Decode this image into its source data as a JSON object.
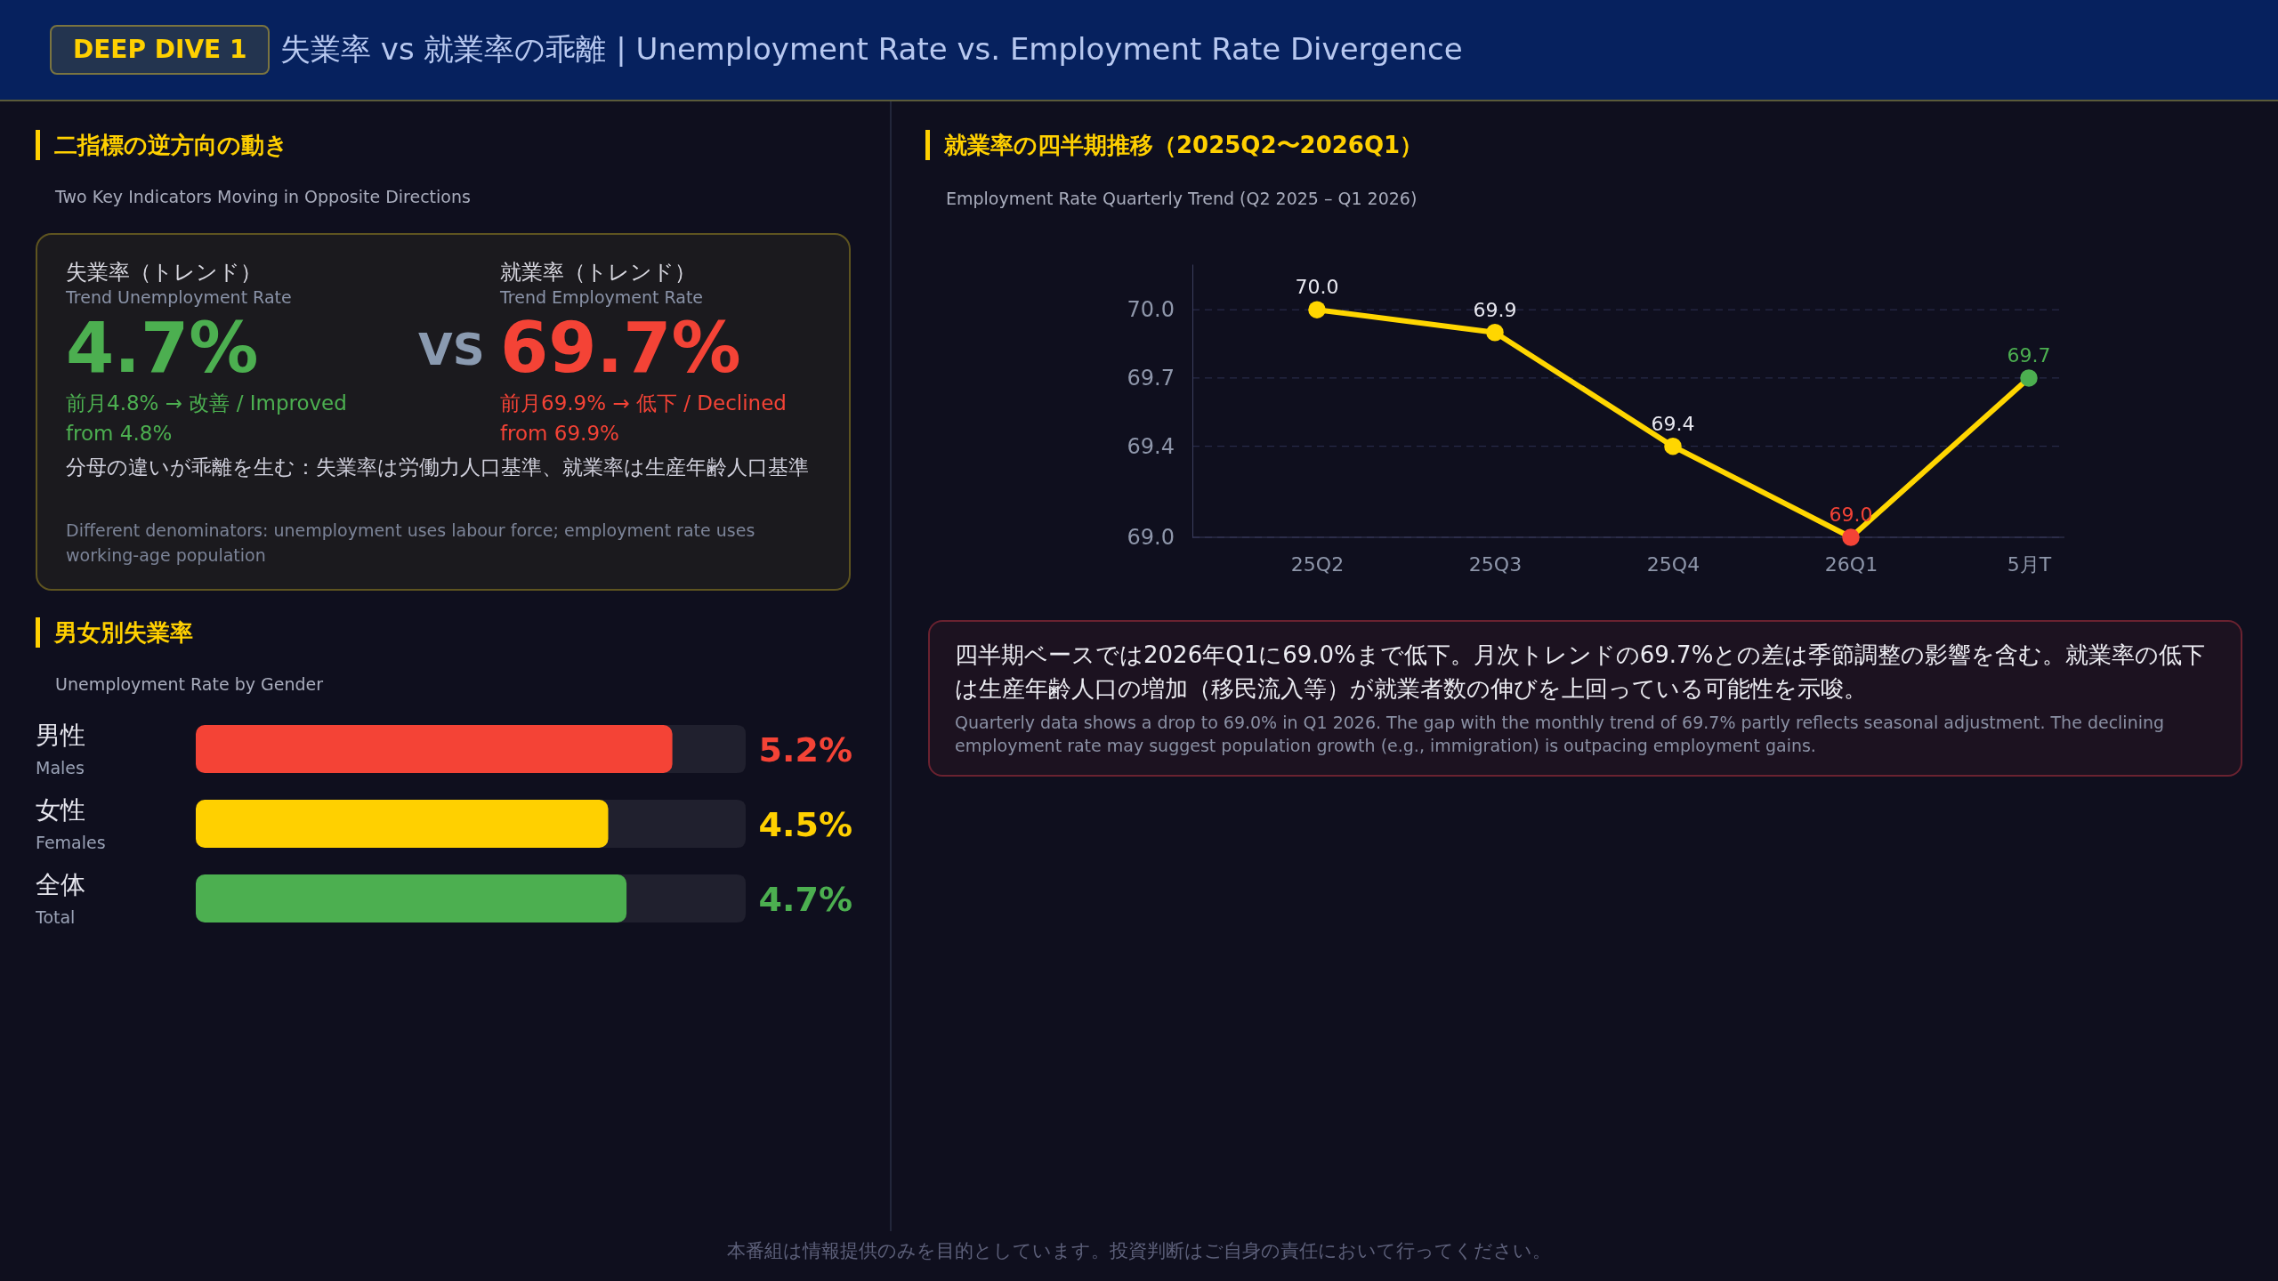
{
  "chart_data": [
    {
      "type": "other",
      "title": "失業率 vs 就業率の乖離 | Unemployment Rate vs. Employment Rate Divergence",
      "annotations": [
        "DEEP DIVE 1",
        "本番組は情報提供のみを目的としています。投資判断はご自身の責任において行ってください。"
      ]
    },
    {
      "type": "other",
      "title": "二指標の逆方向の動き",
      "subtitle": "Two Key Indicators Moving in Opposite Directions",
      "annotations": [
        "失業率（トレンド）",
        "Trend Unemployment Rate",
        "4.7%",
        "前月4.8% → 改善 / Improved from 4.8%",
        "VS",
        "就業率（トレンド）",
        "Trend Employment Rate",
        "69.7%",
        "前月69.9% → 低下 / Declined from 69.9%",
        "分母の違いが乖離を生む：失業率は労働力人口基準、就業率は生産年齢人口基準",
        "Different denominators: unemployment uses labour force; employment rate uses working-age population"
      ]
    },
    {
      "type": "bar",
      "orientation": "horizontal",
      "title": "男女別失業率",
      "subtitle": "Unemployment Rate by Gender",
      "categories": [
        "男性\nMales",
        "女性\nFemales",
        "全体\nTotal"
      ],
      "values": [
        5.2,
        4.5,
        4.7
      ],
      "colors": [
        "#f44336",
        "#ffd000",
        "#4caf50"
      ],
      "value_labels": [
        "5.2%",
        "4.5%",
        "4.7%"
      ],
      "xlim": [
        0,
        6
      ],
      "tick_labels": "y"
    },
    {
      "type": "line",
      "title": "就業率の四半期推移（2025Q2〜2026Q1）",
      "subtitle": "Employment Rate Quarterly Trend (Q2 2025 – Q1 2026)",
      "categories": [
        "25Q2",
        "25Q3",
        "25Q4",
        "26Q1",
        "5月T"
      ],
      "values": [
        70.0,
        69.9,
        69.4,
        69.0,
        69.7
      ],
      "color": "#ffd600",
      "colors": [
        "#ffd600",
        "#ffd600",
        "#ffd600",
        "#f44336",
        "#4caf50"
      ],
      "ylim": [
        69.0,
        70.2
      ],
      "yticks": [
        {
          "value": 69.0,
          "label": "69.0"
        },
        {
          "value": 69.4,
          "label": "69.4"
        },
        {
          "value": 69.7,
          "label": "69.7"
        },
        {
          "value": 70.0,
          "label": "70.0"
        }
      ],
      "grid": "y",
      "marker": "circle",
      "line_style": "solid",
      "value_labels": [
        "70.0",
        "69.9",
        "69.4",
        "69.0",
        "69.7"
      ],
      "annotations": [
        "四半期ベースでは2026年Q1に69.0%まで低下。月次トレンドの69.7%との差は季節調整の影響を含む。就業率の低下は生産年齢人口の増加（移民流入等）が就業者数の伸びを上回っている可能性を示唆。",
        "Quarterly data shows a drop to 69.0% in Q1 2026. The gap with the monthly trend of 69.7% partly reflects seasonal adjustment. The declining employment rate may suggest population growth (e.g., immigration) is outpacing employment gains."
      ]
    }
  ]
}
